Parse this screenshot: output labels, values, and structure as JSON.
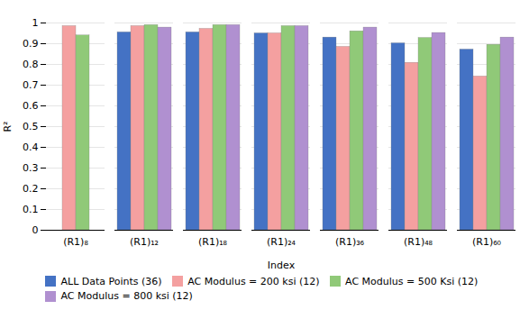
{
  "chart_data": {
    "type": "bar",
    "categories": [
      "(R1)₈",
      "(R1)₁₂",
      "(R1)₁₈",
      "(R1)₂₄",
      "(R1)₃₆",
      "(R1)₄₈",
      "(R1)₆₀"
    ],
    "series": [
      {
        "name": "ALL Data Points (36)",
        "color": "#4472C4",
        "values": [
          null,
          0.955,
          0.955,
          0.95,
          0.93,
          0.902,
          0.872
        ]
      },
      {
        "name": "AC Modulus = 200 ksi (12)",
        "color": "#F4A0A0",
        "values": [
          0.985,
          0.985,
          0.972,
          0.95,
          0.885,
          0.808,
          0.742
        ]
      },
      {
        "name": "AC Modulus = 500 Ksi (12)",
        "color": "#90C978",
        "values": [
          0.94,
          0.99,
          0.99,
          0.985,
          0.96,
          0.928,
          0.895
        ]
      },
      {
        "name": "AC Modulus = 800 ksi (12)",
        "color": "#B090D0",
        "values": [
          null,
          0.978,
          0.99,
          0.985,
          0.978,
          0.952,
          0.93
        ]
      }
    ],
    "ylim": [
      0,
      1.0
    ],
    "yticks": [
      0,
      0.1,
      0.2,
      0.3,
      0.4,
      0.5,
      0.6,
      0.7,
      0.8,
      0.9,
      1
    ],
    "ylabel": "R²",
    "xlabel": "Index",
    "grid": true,
    "legend": "bottom"
  }
}
